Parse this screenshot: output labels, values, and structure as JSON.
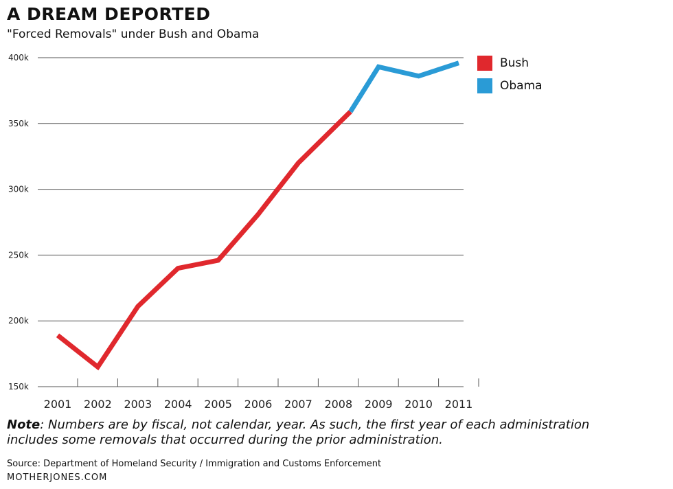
{
  "header": {
    "title": "A DREAM DEPORTED",
    "subtitle": "\"Forced Removals\" under Bush and Obama"
  },
  "legend": [
    {
      "label": "Bush",
      "color": "#e0282d"
    },
    {
      "label": "Obama",
      "color": "#2a9bd6"
    }
  ],
  "chart_data": {
    "type": "line",
    "title": "A DREAM DEPORTED",
    "subtitle": "\"Forced Removals\" under Bush and Obama",
    "xlabel": "",
    "ylabel": "",
    "categories": [
      "2001",
      "2002",
      "2003",
      "2004",
      "2005",
      "2006",
      "2007",
      "2008",
      "2009",
      "2010",
      "2011"
    ],
    "ylim": [
      150000,
      400000
    ],
    "yticks": [
      150000,
      200000,
      250000,
      300000,
      350000,
      400000
    ],
    "ytick_labels": [
      "150k",
      "200k",
      "250k",
      "300k",
      "350k",
      "400k"
    ],
    "grid": true,
    "legend_position": "right",
    "series": [
      {
        "name": "Bush",
        "color": "#e0282d",
        "x": [
          2001,
          2002,
          2003,
          2004,
          2005,
          2006,
          2007,
          2008.3
        ],
        "values": [
          189000,
          165000,
          211000,
          240000,
          246000,
          281000,
          320000,
          359000
        ]
      },
      {
        "name": "Obama",
        "color": "#2a9bd6",
        "x": [
          2008.3,
          2009,
          2010,
          2011
        ],
        "values": [
          359000,
          393000,
          386000,
          396000
        ]
      }
    ]
  },
  "note": {
    "bold": "Note",
    "text": ": Numbers are by fiscal, not calendar, year. As such, the first year of each administration includes some removals that occurred during the prior administration."
  },
  "source": "Source: Department of Homeland Security / Immigration and Customs Enforcement",
  "brand": "MOTHERJONES.COM"
}
